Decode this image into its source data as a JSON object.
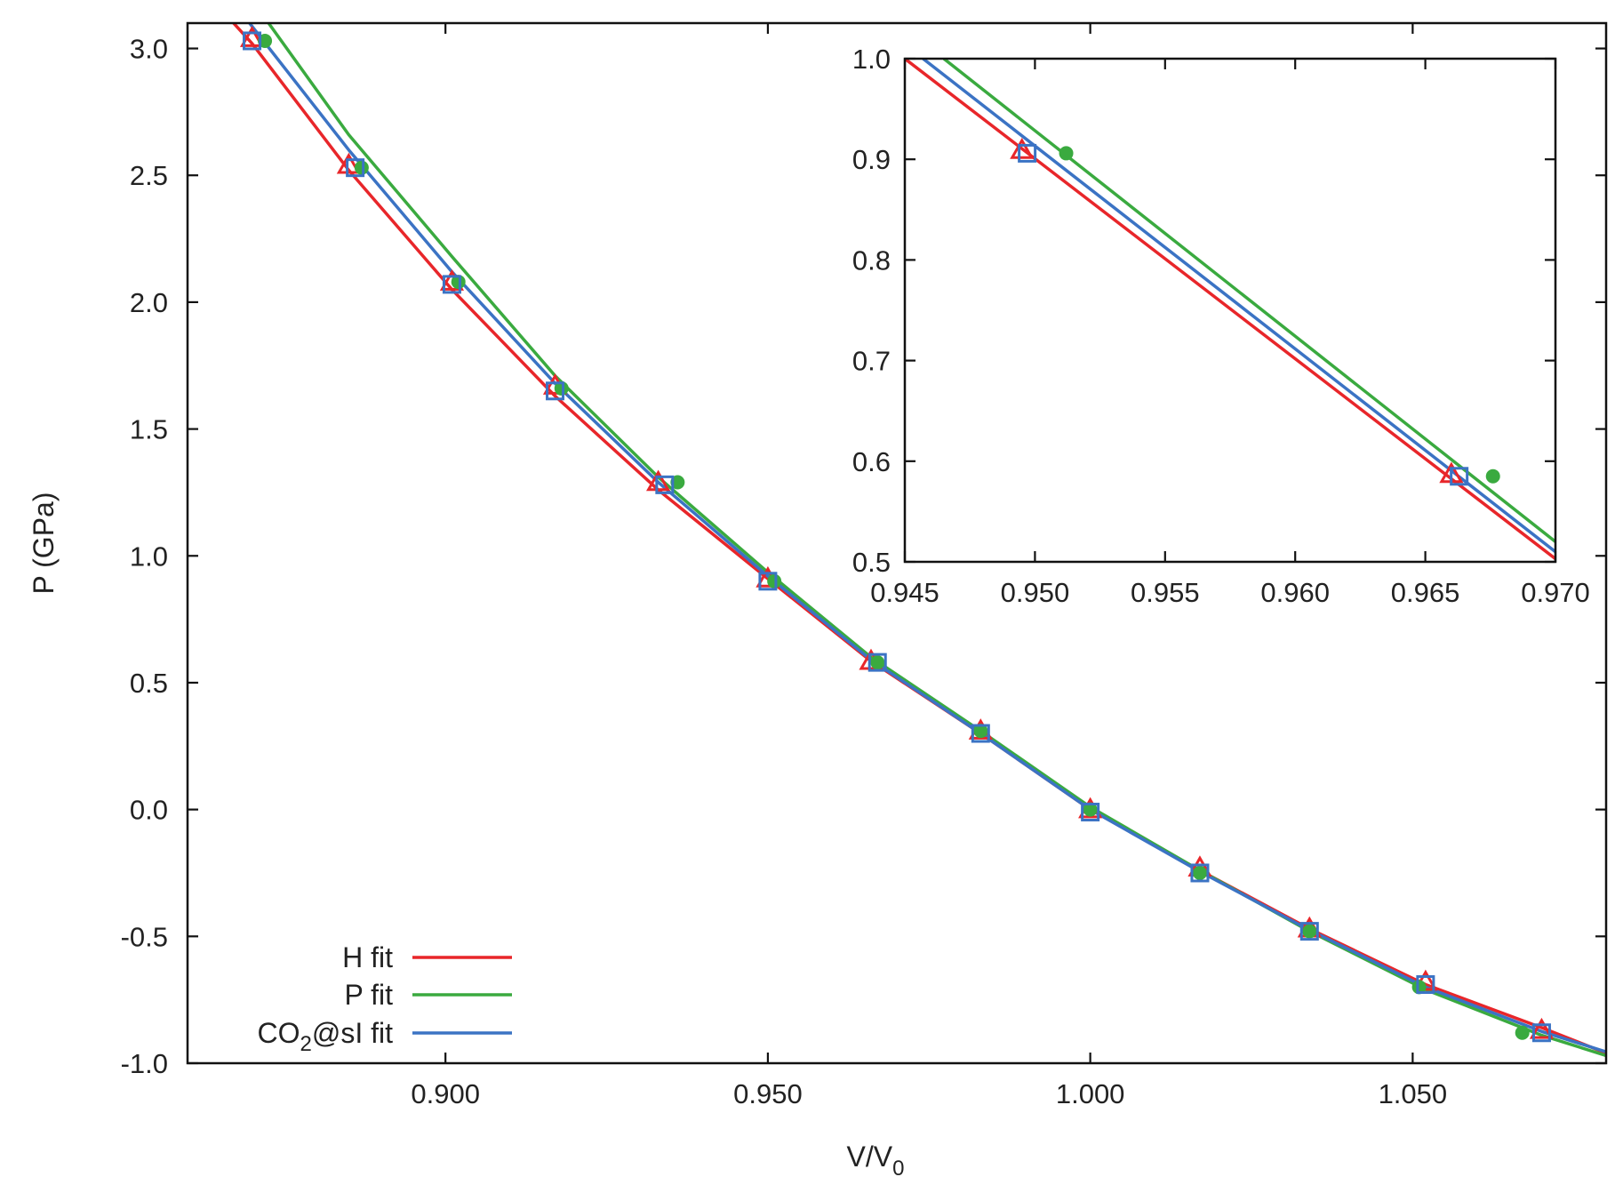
{
  "chart_data": [
    {
      "id": "main",
      "type": "line",
      "xlabel": "V/V",
      "xlabel_sub": "0",
      "ylabel": "P (GPa)",
      "xlim": [
        0.86,
        1.08
      ],
      "ylim": [
        -1.0,
        3.1
      ],
      "xticks": [
        0.9,
        0.95,
        1.0,
        1.05
      ],
      "xtick_labels": [
        "0.900",
        "0.950",
        "1.000",
        "1.050"
      ],
      "yticks": [
        -1.0,
        -0.5,
        0.0,
        0.5,
        1.0,
        1.5,
        2.0,
        2.5,
        3.0
      ],
      "ytick_labels": [
        "-1.0",
        "-0.5",
        "0.0",
        "0.5",
        "1.0",
        "1.5",
        "2.0",
        "2.5",
        "3.0"
      ],
      "legend_position": "bottom-left",
      "series": [
        {
          "name": "H fit",
          "name_parts": [
            "H fit"
          ],
          "color": "#e8262a",
          "marker": "triangle",
          "line": [
            [
              0.865,
              3.16
            ],
            [
              0.87,
              3.02
            ],
            [
              0.885,
              2.52
            ],
            [
              0.901,
              2.05
            ],
            [
              0.917,
              1.63
            ],
            [
              0.933,
              1.26
            ],
            [
              0.95,
              0.91
            ],
            [
              0.966,
              0.585
            ],
            [
              0.983,
              0.3
            ],
            [
              1.0,
              0.0
            ],
            [
              1.017,
              -0.24
            ],
            [
              1.034,
              -0.47
            ],
            [
              1.052,
              -0.69
            ],
            [
              1.07,
              -0.86
            ],
            [
              1.08,
              -0.96
            ]
          ],
          "points": [
            [
              0.87,
              3.04
            ],
            [
              0.885,
              2.54
            ],
            [
              0.901,
              2.08
            ],
            [
              0.917,
              1.67
            ],
            [
              0.933,
              1.29
            ],
            [
              0.95,
              0.91
            ],
            [
              0.966,
              0.585
            ],
            [
              0.983,
              0.31
            ],
            [
              1.0,
              0.0
            ],
            [
              1.017,
              -0.23
            ],
            [
              1.034,
              -0.47
            ],
            [
              1.052,
              -0.68
            ],
            [
              1.07,
              -0.87
            ]
          ]
        },
        {
          "name": "P fit",
          "name_parts": [
            "P fit"
          ],
          "color": "#3aaa3f",
          "marker": "circle",
          "line": [
            [
              0.872,
              3.12
            ],
            [
              0.885,
              2.66
            ],
            [
              0.901,
              2.18
            ],
            [
              0.917,
              1.71
            ],
            [
              0.933,
              1.31
            ],
            [
              0.95,
              0.935
            ],
            [
              0.966,
              0.6
            ],
            [
              0.983,
              0.31
            ],
            [
              1.0,
              0.01
            ],
            [
              1.017,
              -0.24
            ],
            [
              1.034,
              -0.48
            ],
            [
              1.052,
              -0.71
            ],
            [
              1.07,
              -0.89
            ],
            [
              1.08,
              -0.97
            ]
          ],
          "points": [
            [
              0.872,
              3.03
            ],
            [
              0.887,
              2.53
            ],
            [
              0.902,
              2.08
            ],
            [
              0.918,
              1.66
            ],
            [
              0.936,
              1.29
            ],
            [
              0.951,
              0.9
            ],
            [
              0.967,
              0.58
            ],
            [
              0.983,
              0.31
            ],
            [
              1.0,
              0.0
            ],
            [
              1.017,
              -0.25
            ],
            [
              1.034,
              -0.48
            ],
            [
              1.051,
              -0.7
            ],
            [
              1.067,
              -0.88
            ]
          ]
        },
        {
          "name": "CO2@sI fit",
          "name_parts": [
            "CO",
            "2",
            "@sI fit"
          ],
          "color": "#3b73c4",
          "marker": "square",
          "line": [
            [
              0.869,
              3.12
            ],
            [
              0.885,
              2.6
            ],
            [
              0.901,
              2.12
            ],
            [
              0.917,
              1.68
            ],
            [
              0.933,
              1.29
            ],
            [
              0.95,
              0.92
            ],
            [
              0.966,
              0.59
            ],
            [
              0.983,
              0.3
            ],
            [
              1.0,
              0.0
            ],
            [
              1.017,
              -0.245
            ],
            [
              1.034,
              -0.475
            ],
            [
              1.052,
              -0.7
            ],
            [
              1.07,
              -0.875
            ],
            [
              1.08,
              -0.955
            ]
          ],
          "points": [
            [
              0.87,
              3.03
            ],
            [
              0.886,
              2.53
            ],
            [
              0.901,
              2.07
            ],
            [
              0.917,
              1.65
            ],
            [
              0.934,
              1.28
            ],
            [
              0.95,
              0.9
            ],
            [
              0.967,
              0.58
            ],
            [
              0.983,
              0.3
            ],
            [
              1.0,
              -0.01
            ],
            [
              1.017,
              -0.25
            ],
            [
              1.034,
              -0.48
            ],
            [
              1.052,
              -0.69
            ],
            [
              1.07,
              -0.88
            ]
          ]
        }
      ]
    },
    {
      "id": "inset",
      "type": "line",
      "xlim": [
        0.945,
        0.97
      ],
      "ylim": [
        0.5,
        1.0
      ],
      "xticks": [
        0.945,
        0.95,
        0.955,
        0.96,
        0.965,
        0.97
      ],
      "xtick_labels": [
        "0.945",
        "0.950",
        "0.955",
        "0.960",
        "0.965",
        "0.970"
      ],
      "yticks": [
        0.5,
        0.6,
        0.7,
        0.8,
        0.9,
        1.0
      ],
      "ytick_labels": [
        "0.5",
        "0.6",
        "0.7",
        "0.8",
        "0.9",
        "1.0"
      ],
      "series": [
        {
          "name": "H fit",
          "color": "#e8262a",
          "marker": "triangle",
          "line": [
            [
              0.945,
              1.0
            ],
            [
              0.97,
              0.503
            ]
          ],
          "points": [
            [
              0.9495,
              0.909
            ],
            [
              0.966,
              0.587
            ]
          ]
        },
        {
          "name": "P fit",
          "color": "#3aaa3f",
          "marker": "circle",
          "line": [
            [
              0.9465,
              1.0
            ],
            [
              0.97,
              0.52
            ]
          ],
          "points": [
            [
              0.9512,
              0.906
            ],
            [
              0.9676,
              0.585
            ]
          ]
        },
        {
          "name": "CO2@sI fit",
          "color": "#3b73c4",
          "marker": "square",
          "line": [
            [
              0.9457,
              1.0
            ],
            [
              0.97,
              0.51
            ]
          ],
          "points": [
            [
              0.9497,
              0.906
            ],
            [
              0.9663,
              0.585
            ]
          ]
        }
      ]
    }
  ]
}
